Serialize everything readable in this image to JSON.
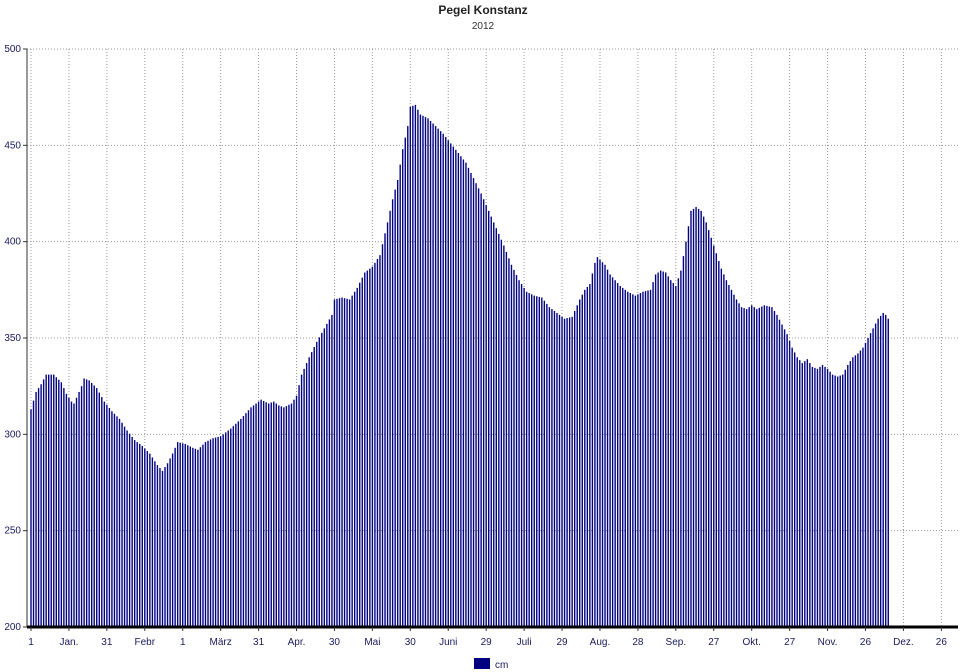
{
  "chart_data": {
    "type": "bar",
    "title": "Pegel Konstanz",
    "subtitle": "2012",
    "xlabel": "",
    "ylabel": "",
    "ylim": [
      200,
      500
    ],
    "yticks": [
      200,
      250,
      300,
      350,
      400,
      450,
      500
    ],
    "grid": true,
    "legend_position": "bottom-center",
    "colors": {
      "bar": "#000080",
      "grid": "#999999",
      "axis": "#333333"
    },
    "x_ticks": [
      {
        "day": 1,
        "label": "1"
      },
      {
        "day": 16,
        "label": "Jan."
      },
      {
        "day": 31,
        "label": "31"
      },
      {
        "day": 46,
        "label": "Febr"
      },
      {
        "day": 61,
        "label": "1"
      },
      {
        "day": 76,
        "label": "März"
      },
      {
        "day": 91,
        "label": "31"
      },
      {
        "day": 106,
        "label": "Apr."
      },
      {
        "day": 121,
        "label": "30"
      },
      {
        "day": 136,
        "label": "Mai"
      },
      {
        "day": 151,
        "label": "30"
      },
      {
        "day": 166,
        "label": "Juni"
      },
      {
        "day": 181,
        "label": "29"
      },
      {
        "day": 196,
        "label": "Juli"
      },
      {
        "day": 211,
        "label": "29"
      },
      {
        "day": 226,
        "label": "Aug."
      },
      {
        "day": 241,
        "label": "28"
      },
      {
        "day": 256,
        "label": "Sep."
      },
      {
        "day": 271,
        "label": "27"
      },
      {
        "day": 286,
        "label": "Okt."
      },
      {
        "day": 301,
        "label": "27"
      },
      {
        "day": 316,
        "label": "Nov."
      },
      {
        "day": 331,
        "label": "26"
      },
      {
        "day": 346,
        "label": "Dez."
      },
      {
        "day": 361,
        "label": "26"
      }
    ],
    "series": [
      {
        "name": "cm",
        "keypoints": [
          [
            1,
            313
          ],
          [
            3,
            322
          ],
          [
            5,
            326
          ],
          [
            7,
            331
          ],
          [
            10,
            331
          ],
          [
            13,
            327
          ],
          [
            15,
            321
          ],
          [
            17,
            317
          ],
          [
            18,
            316
          ],
          [
            21,
            325
          ],
          [
            22,
            329
          ],
          [
            24,
            328
          ],
          [
            27,
            324
          ],
          [
            30,
            317
          ],
          [
            33,
            312
          ],
          [
            36,
            308
          ],
          [
            39,
            302
          ],
          [
            42,
            297
          ],
          [
            45,
            294
          ],
          [
            48,
            290
          ],
          [
            51,
            284
          ],
          [
            53,
            281
          ],
          [
            55,
            285
          ],
          [
            57,
            290
          ],
          [
            59,
            296
          ],
          [
            62,
            295
          ],
          [
            65,
            293
          ],
          [
            67,
            292
          ],
          [
            70,
            296
          ],
          [
            73,
            298
          ],
          [
            76,
            299
          ],
          [
            80,
            303
          ],
          [
            84,
            308
          ],
          [
            88,
            314
          ],
          [
            92,
            318
          ],
          [
            95,
            316
          ],
          [
            97,
            317
          ],
          [
            99,
            315
          ],
          [
            101,
            314
          ],
          [
            104,
            316
          ],
          [
            106,
            320
          ],
          [
            108,
            331
          ],
          [
            111,
            340
          ],
          [
            114,
            348
          ],
          [
            117,
            355
          ],
          [
            120,
            362
          ],
          [
            121,
            370
          ],
          [
            124,
            371
          ],
          [
            127,
            370
          ],
          [
            130,
            376
          ],
          [
            133,
            384
          ],
          [
            136,
            387
          ],
          [
            139,
            393
          ],
          [
            142,
            410
          ],
          [
            144,
            422
          ],
          [
            146,
            432
          ],
          [
            148,
            448
          ],
          [
            150,
            460
          ],
          [
            151,
            470
          ],
          [
            153,
            471
          ],
          [
            155,
            466
          ],
          [
            158,
            464
          ],
          [
            161,
            460
          ],
          [
            164,
            456
          ],
          [
            167,
            451
          ],
          [
            170,
            446
          ],
          [
            173,
            441
          ],
          [
            176,
            433
          ],
          [
            179,
            425
          ],
          [
            182,
            416
          ],
          [
            185,
            407
          ],
          [
            188,
            398
          ],
          [
            191,
            388
          ],
          [
            194,
            380
          ],
          [
            197,
            374
          ],
          [
            200,
            372
          ],
          [
            203,
            371
          ],
          [
            206,
            366
          ],
          [
            209,
            363
          ],
          [
            212,
            360
          ],
          [
            215,
            361
          ],
          [
            218,
            370
          ],
          [
            220,
            375
          ],
          [
            222,
            378
          ],
          [
            224,
            389
          ],
          [
            225,
            392
          ],
          [
            228,
            388
          ],
          [
            230,
            383
          ],
          [
            232,
            380
          ],
          [
            234,
            377
          ],
          [
            237,
            374
          ],
          [
            240,
            372
          ],
          [
            243,
            374
          ],
          [
            246,
            375
          ],
          [
            248,
            383
          ],
          [
            250,
            385
          ],
          [
            252,
            384
          ],
          [
            254,
            380
          ],
          [
            256,
            377
          ],
          [
            258,
            385
          ],
          [
            260,
            400
          ],
          [
            262,
            416
          ],
          [
            264,
            418
          ],
          [
            266,
            416
          ],
          [
            268,
            410
          ],
          [
            270,
            402
          ],
          [
            272,
            394
          ],
          [
            274,
            386
          ],
          [
            276,
            380
          ],
          [
            278,
            375
          ],
          [
            280,
            370
          ],
          [
            282,
            366
          ],
          [
            284,
            365
          ],
          [
            286,
            367
          ],
          [
            288,
            365
          ],
          [
            291,
            367
          ],
          [
            294,
            366
          ],
          [
            296,
            362
          ],
          [
            298,
            357
          ],
          [
            300,
            352
          ],
          [
            302,
            345
          ],
          [
            304,
            340
          ],
          [
            306,
            337
          ],
          [
            308,
            339
          ],
          [
            310,
            335
          ],
          [
            312,
            334
          ],
          [
            314,
            336
          ],
          [
            316,
            334
          ],
          [
            318,
            331
          ],
          [
            320,
            330
          ],
          [
            322,
            331
          ],
          [
            324,
            336
          ],
          [
            326,
            340
          ],
          [
            328,
            342
          ],
          [
            330,
            345
          ],
          [
            332,
            350
          ],
          [
            334,
            355
          ],
          [
            336,
            360
          ],
          [
            338,
            363
          ],
          [
            339,
            362
          ],
          [
            340,
            360
          ]
        ]
      }
    ]
  },
  "legend": {
    "items": [
      {
        "label": "cm",
        "color": "#000080"
      }
    ]
  }
}
